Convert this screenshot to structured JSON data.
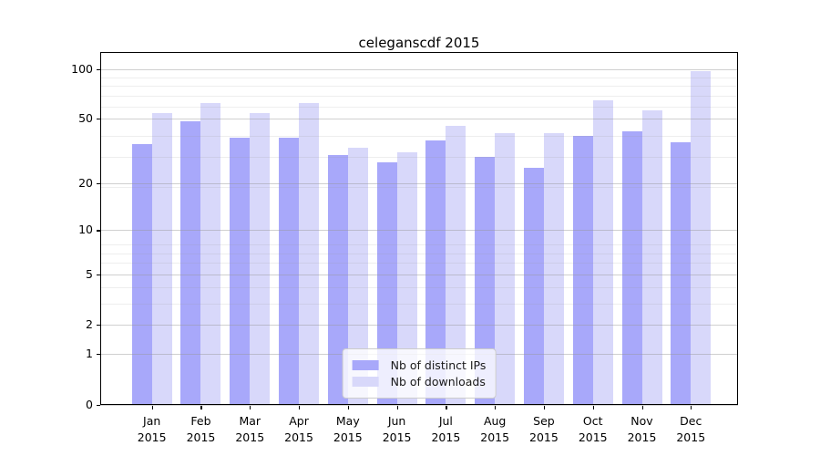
{
  "chart_data": {
    "type": "bar",
    "title": "celeganscdf 2015",
    "categories": [
      {
        "month": "Jan",
        "year": "2015"
      },
      {
        "month": "Feb",
        "year": "2015"
      },
      {
        "month": "Mar",
        "year": "2015"
      },
      {
        "month": "Apr",
        "year": "2015"
      },
      {
        "month": "May",
        "year": "2015"
      },
      {
        "month": "Jun",
        "year": "2015"
      },
      {
        "month": "Jul",
        "year": "2015"
      },
      {
        "month": "Aug",
        "year": "2015"
      },
      {
        "month": "Sep",
        "year": "2015"
      },
      {
        "month": "Oct",
        "year": "2015"
      },
      {
        "month": "Nov",
        "year": "2015"
      },
      {
        "month": "Dec",
        "year": "2015"
      }
    ],
    "series": [
      {
        "name": "Nb of distinct IPs",
        "color": "#a8a8fa",
        "values": [
          35,
          48,
          38,
          38,
          30,
          27,
          37,
          29,
          25,
          39,
          42,
          36
        ]
      },
      {
        "name": "Nb of downloads",
        "color": "#d8d8fa",
        "values": [
          54,
          62,
          54,
          62,
          33,
          31,
          45,
          41,
          41,
          65,
          56,
          97
        ]
      }
    ],
    "yscale": "log(1+x)",
    "yticks": [
      {
        "label": "0",
        "value": 0
      },
      {
        "label": "1",
        "value": 1
      },
      {
        "label": "2",
        "value": 2
      },
      {
        "label": "5",
        "value": 5
      },
      {
        "label": "10",
        "value": 10
      },
      {
        "label": "20",
        "value": 20
      },
      {
        "label": "50",
        "value": 50
      },
      {
        "label": "100",
        "value": 100
      }
    ],
    "ylim": [
      0,
      128
    ],
    "grid": true,
    "legend_position": "lower center"
  }
}
